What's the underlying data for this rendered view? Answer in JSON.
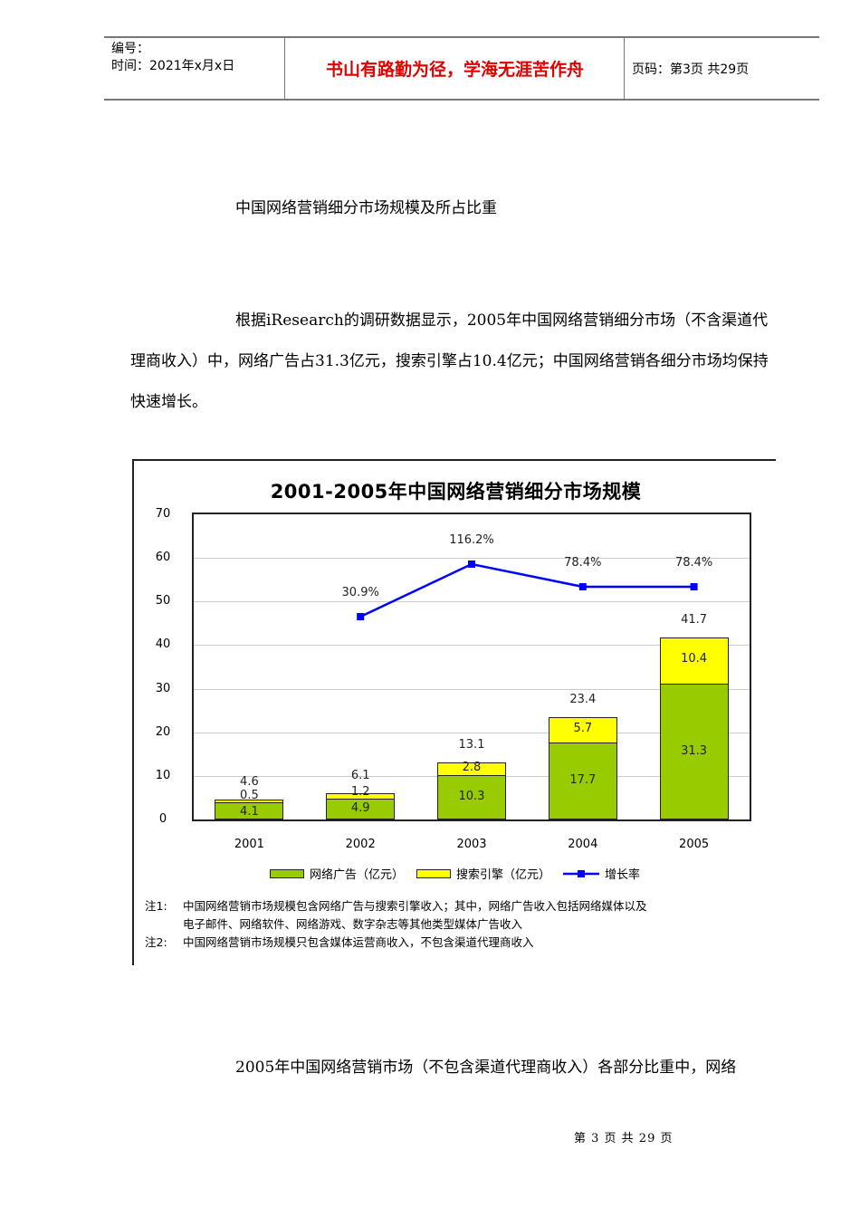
{
  "header": {
    "serial_label": "编号：",
    "time_label": "时间：2021年x月x日",
    "motto": "书山有路勤为径，学海无涯苦作舟",
    "page_info": "页码：第3页  共29页"
  },
  "caption": "中国网络营销细分市场规模及所占比重",
  "paragraph1": "根据iResearch的调研数据显示，2005年中国网络营销细分市场（不含渠道代理商收入）中，网络广告占31.3亿元，搜索引擎占10.4亿元；中国网络营销各细分市场均保持快速增长。",
  "paragraph2": "2005年中国网络营销市场（不包含渠道代理商收入）各部分比重中，网络",
  "footer": "第 3 页 共 29 页",
  "chart": {
    "title": "2001-2005年中国网络营销细分市场规模",
    "yticks": [
      "0",
      "10",
      "20",
      "30",
      "40",
      "50",
      "60",
      "70"
    ],
    "legend": {
      "ad": "网络广告（亿元）",
      "se": "搜索引擎（亿元）",
      "rate": "增长率"
    },
    "notes": [
      {
        "tag": "注1:",
        "text": "中国网络营销市场规模包含网络广告与搜索引擎收入；其中，网络广告收入包括网络媒体以及"
      },
      {
        "tag": "",
        "text": "电子邮件、网络软件、网络游戏、数字杂志等其他类型媒体广告收入"
      },
      {
        "tag": "注2:",
        "text": "中国网络营销市场规模只包含媒体运营商收入，不包含渠道代理商收入"
      }
    ],
    "colors": {
      "ad": "#99cc00",
      "se": "#ffff00",
      "rate": "#0000ff"
    }
  },
  "chart_data": {
    "type": "bar",
    "stacked": true,
    "title": "2001-2005年中国网络营销细分市场规模",
    "categories": [
      "2001",
      "2002",
      "2003",
      "2004",
      "2005"
    ],
    "series": [
      {
        "name": "网络广告（亿元）",
        "values": [
          4.1,
          4.9,
          10.3,
          17.7,
          31.3
        ],
        "color": "#99cc00"
      },
      {
        "name": "搜索引擎（亿元）",
        "values": [
          0.5,
          1.2,
          2.8,
          5.7,
          10.4
        ],
        "color": "#ffff00"
      },
      {
        "name": "增长率",
        "type": "line",
        "values": [
          null,
          30.9,
          116.2,
          78.4,
          78.4
        ],
        "labels": [
          "",
          "30.9%",
          "116.2%",
          "78.4%",
          "78.4%"
        ],
        "color": "#0000ff"
      }
    ],
    "totals": [
      4.6,
      6.1,
      13.1,
      23.4,
      41.7
    ],
    "xlabel": "",
    "ylabel": "",
    "ylim": [
      0,
      70
    ],
    "yticks": [
      0,
      10,
      20,
      30,
      40,
      50,
      60,
      70
    ],
    "grid": true,
    "legend_position": "bottom"
  }
}
